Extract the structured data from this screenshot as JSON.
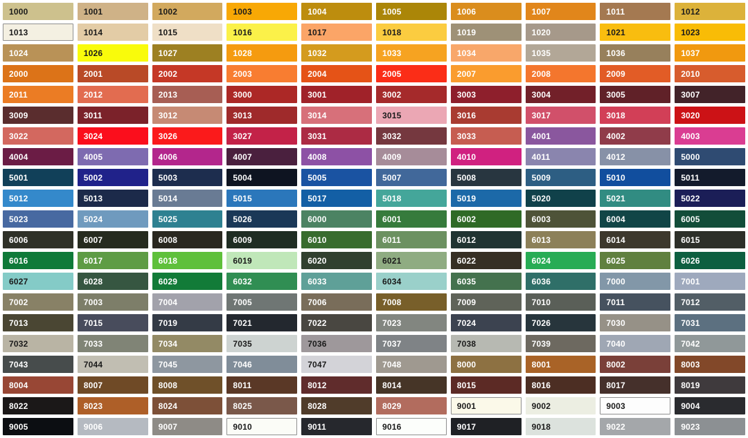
{
  "page": {
    "title": "RAL colour swatch grid",
    "background": "#ffffff"
  },
  "grid": {
    "columns": 10,
    "rows": 21,
    "gap_color": "#ffffff",
    "border_color": "#8f8f8f"
  },
  "text_colors": {
    "d": "#1b1b1b",
    "l": "#ffffff"
  },
  "bordered_codes": [
    "1013",
    "9001",
    "9003",
    "9010",
    "9016"
  ],
  "swatch_fields": [
    "code",
    "hex",
    "text_color"
  ],
  "swatches": [
    [
      "1000",
      "#CDC18D",
      "d"
    ],
    [
      "1001",
      "#CFB287",
      "d"
    ],
    [
      "1002",
      "#D2A95E",
      "d"
    ],
    [
      "1003",
      "#F8A805",
      "d"
    ],
    [
      "1004",
      "#BD8D0E",
      "l"
    ],
    [
      "1005",
      "#AB8608",
      "l"
    ],
    [
      "1006",
      "#DA8D1D",
      "l"
    ],
    [
      "1007",
      "#E1861B",
      "l"
    ],
    [
      "1011",
      "#A47951",
      "l"
    ],
    [
      "1012",
      "#DCB23A",
      "d"
    ],
    [
      "1013",
      "#F4F0E2",
      "d"
    ],
    [
      "1014",
      "#E3CCA6",
      "d"
    ],
    [
      "1015",
      "#EFDFC6",
      "d"
    ],
    [
      "1016",
      "#FBF149",
      "d"
    ],
    [
      "1017",
      "#FBA567",
      "d"
    ],
    [
      "1018",
      "#FBCC40",
      "d"
    ],
    [
      "1019",
      "#9E9177",
      "l"
    ],
    [
      "1020",
      "#A6998A",
      "l"
    ],
    [
      "1021",
      "#F9BD0F",
      "d"
    ],
    [
      "1023",
      "#F9BC06",
      "d"
    ],
    [
      "1024",
      "#B99257",
      "l"
    ],
    [
      "1026",
      "#F9FB0B",
      "d"
    ],
    [
      "1027",
      "#9D8022",
      "l"
    ],
    [
      "1028",
      "#F59B0F",
      "l"
    ],
    [
      "1032",
      "#D49B1E",
      "l"
    ],
    [
      "1033",
      "#F6A321",
      "l"
    ],
    [
      "1034",
      "#F8A76A",
      "l"
    ],
    [
      "1035",
      "#B2A797",
      "l"
    ],
    [
      "1036",
      "#97805C",
      "l"
    ],
    [
      "1037",
      "#F1990F",
      "l"
    ],
    [
      "2000",
      "#DC7318",
      "l"
    ],
    [
      "2001",
      "#B94A27",
      "l"
    ],
    [
      "2002",
      "#C53826",
      "l"
    ],
    [
      "2003",
      "#F87D31",
      "l"
    ],
    [
      "2004",
      "#E55317",
      "l"
    ],
    [
      "2005",
      "#FB2D17",
      "l"
    ],
    [
      "2007",
      "#FA9C2E",
      "l"
    ],
    [
      "2008",
      "#F4762D",
      "l"
    ],
    [
      "2009",
      "#E25C26",
      "l"
    ],
    [
      "2010",
      "#D75C2D",
      "l"
    ],
    [
      "2011",
      "#EB7C24",
      "l"
    ],
    [
      "2012",
      "#E26C50",
      "l"
    ],
    [
      "2013",
      "#A75E54",
      "l"
    ],
    [
      "3000",
      "#AC2826",
      "l"
    ],
    [
      "3001",
      "#A02229",
      "l"
    ],
    [
      "3002",
      "#A52A2B",
      "l"
    ],
    [
      "3003",
      "#8E1F2C",
      "l"
    ],
    [
      "3004",
      "#722029",
      "l"
    ],
    [
      "3005",
      "#602128",
      "l"
    ],
    [
      "3007",
      "#422329",
      "l"
    ],
    [
      "3009",
      "#5A2D2E",
      "l"
    ],
    [
      "3011",
      "#7B222A",
      "l"
    ],
    [
      "3012",
      "#C68A74",
      "l"
    ],
    [
      "3013",
      "#9F2A2B",
      "l"
    ],
    [
      "3014",
      "#D7707A",
      "l"
    ],
    [
      "3015",
      "#EBA7B4",
      "d"
    ],
    [
      "3016",
      "#A93B31",
      "l"
    ],
    [
      "3017",
      "#D1506A",
      "l"
    ],
    [
      "3018",
      "#D23F57",
      "l"
    ],
    [
      "3020",
      "#CC1216",
      "l"
    ],
    [
      "3022",
      "#D3685F",
      "l"
    ],
    [
      "3024",
      "#FB0E1C",
      "l"
    ],
    [
      "3026",
      "#FB1A1B",
      "l"
    ],
    [
      "3027",
      "#C32248",
      "l"
    ],
    [
      "3031",
      "#AC2B44",
      "l"
    ],
    [
      "3032",
      "#75383F",
      "l"
    ],
    [
      "3033",
      "#C65D51",
      "l"
    ],
    [
      "4001",
      "#8A579E",
      "l"
    ],
    [
      "4002",
      "#903C4A",
      "l"
    ],
    [
      "4003",
      "#DA3D92",
      "l"
    ],
    [
      "4004",
      "#6B1C45",
      "l"
    ],
    [
      "4005",
      "#7E6BB0",
      "l"
    ],
    [
      "4006",
      "#B3268C",
      "l"
    ],
    [
      "4007",
      "#4A203E",
      "l"
    ],
    [
      "4008",
      "#8D51A5",
      "l"
    ],
    [
      "4009",
      "#A68C99",
      "l"
    ],
    [
      "4010",
      "#D02180",
      "l"
    ],
    [
      "4011",
      "#8A85AE",
      "l"
    ],
    [
      "4012",
      "#8791A7",
      "l"
    ],
    [
      "5000",
      "#2F4B72",
      "l"
    ],
    [
      "5001",
      "#114059",
      "l"
    ],
    [
      "5002",
      "#20228A",
      "l"
    ],
    [
      "5003",
      "#1D2D4E",
      "l"
    ],
    [
      "5004",
      "#0E1421",
      "l"
    ],
    [
      "5005",
      "#1A53A2",
      "l"
    ],
    [
      "5007",
      "#41689A",
      "l"
    ],
    [
      "5008",
      "#283640",
      "l"
    ],
    [
      "5009",
      "#2D5E83",
      "l"
    ],
    [
      "5010",
      "#114E9E",
      "l"
    ],
    [
      "5011",
      "#131B2C",
      "l"
    ],
    [
      "5012",
      "#3489CB",
      "l"
    ],
    [
      "5013",
      "#1C2A4A",
      "l"
    ],
    [
      "5014",
      "#697B94",
      "l"
    ],
    [
      "5015",
      "#2B77BB",
      "l"
    ],
    [
      "5017",
      "#135FA5",
      "l"
    ],
    [
      "5018",
      "#44A69A",
      "l"
    ],
    [
      "5019",
      "#1C69A8",
      "l"
    ],
    [
      "5020",
      "#10414A",
      "l"
    ],
    [
      "5021",
      "#318C82",
      "l"
    ],
    [
      "5022",
      "#1B1E57",
      "l"
    ],
    [
      "5023",
      "#4769A1",
      "l"
    ],
    [
      "5024",
      "#6F9ABE",
      "l"
    ],
    [
      "5025",
      "#2E8191",
      "l"
    ],
    [
      "5026",
      "#1A3857",
      "l"
    ],
    [
      "6000",
      "#4C8363",
      "l"
    ],
    [
      "6001",
      "#367B3C",
      "l"
    ],
    [
      "6002",
      "#2F6A26",
      "l"
    ],
    [
      "6003",
      "#4E5338",
      "l"
    ],
    [
      "6004",
      "#114546",
      "l"
    ],
    [
      "6005",
      "#124D39",
      "l"
    ],
    [
      "6006",
      "#2F3128",
      "l"
    ],
    [
      "6007",
      "#262B1F",
      "l"
    ],
    [
      "6008",
      "#2A2820",
      "l"
    ],
    [
      "6009",
      "#1F2D23",
      "l"
    ],
    [
      "6010",
      "#386C2E",
      "l"
    ],
    [
      "6011",
      "#6C9161",
      "l"
    ],
    [
      "6012",
      "#203432",
      "l"
    ],
    [
      "6013",
      "#8C8059",
      "l"
    ],
    [
      "6014",
      "#3D382D",
      "l"
    ],
    [
      "6015",
      "#2D2F29",
      "l"
    ],
    [
      "6016",
      "#0F7A39",
      "l"
    ],
    [
      "6017",
      "#5E9C45",
      "l"
    ],
    [
      "6018",
      "#5FC03B",
      "l"
    ],
    [
      "6019",
      "#C0E7B9",
      "d"
    ],
    [
      "6020",
      "#31402F",
      "l"
    ],
    [
      "6021",
      "#8FAC82",
      "d"
    ],
    [
      "6022",
      "#362F24",
      "l"
    ],
    [
      "6024",
      "#28AC55",
      "l"
    ],
    [
      "6025",
      "#60803F",
      "l"
    ],
    [
      "6026",
      "#0D5F40",
      "l"
    ],
    [
      "6027",
      "#84CBC7",
      "d"
    ],
    [
      "6028",
      "#365641",
      "l"
    ],
    [
      "6029",
      "#127B38",
      "l"
    ],
    [
      "6032",
      "#308E53",
      "l"
    ],
    [
      "6033",
      "#5FA098",
      "l"
    ],
    [
      "6034",
      "#9AD0CA",
      "d"
    ],
    [
      "6035",
      "#44724E",
      "l"
    ],
    [
      "6036",
      "#2F6F68",
      "l"
    ],
    [
      "7000",
      "#8297A8",
      "l"
    ],
    [
      "7001",
      "#9EA9BD",
      "l"
    ],
    [
      "7002",
      "#888166",
      "l"
    ],
    [
      "7003",
      "#7D7E69",
      "l"
    ],
    [
      "7004",
      "#A2A2AB",
      "l"
    ],
    [
      "7005",
      "#6F7674",
      "l"
    ],
    [
      "7006",
      "#796D5A",
      "l"
    ],
    [
      "7008",
      "#785F2A",
      "l"
    ],
    [
      "7009",
      "#5F6359",
      "l"
    ],
    [
      "7010",
      "#5A5F58",
      "l"
    ],
    [
      "7011",
      "#46525F",
      "l"
    ],
    [
      "7012",
      "#525E66",
      "l"
    ],
    [
      "7013",
      "#4A4633",
      "l"
    ],
    [
      "7015",
      "#484C5C",
      "l"
    ],
    [
      "7019",
      "#343B46",
      "l"
    ],
    [
      "7021",
      "#23282F",
      "l"
    ],
    [
      "7022",
      "#494741",
      "l"
    ],
    [
      "7023",
      "#828680",
      "l"
    ],
    [
      "7024",
      "#3C4350",
      "l"
    ],
    [
      "7026",
      "#27353C",
      "l"
    ],
    [
      "7030",
      "#969187",
      "l"
    ],
    [
      "7031",
      "#5C7080",
      "l"
    ],
    [
      "7032",
      "#B9B4A4",
      "d"
    ],
    [
      "7033",
      "#808476",
      "l"
    ],
    [
      "7034",
      "#938A65",
      "l"
    ],
    [
      "7035",
      "#CDD3D1",
      "d"
    ],
    [
      "7036",
      "#9E989B",
      "d"
    ],
    [
      "7037",
      "#7F8386",
      "l"
    ],
    [
      "7038",
      "#B7B9B2",
      "d"
    ],
    [
      "7039",
      "#6D6960",
      "l"
    ],
    [
      "7040",
      "#9FA7B4",
      "l"
    ],
    [
      "7042",
      "#909899",
      "l"
    ],
    [
      "7043",
      "#474C4C",
      "l"
    ],
    [
      "7044",
      "#C1BEB2",
      "d"
    ],
    [
      "7045",
      "#8E97A0",
      "l"
    ],
    [
      "7046",
      "#808D99",
      "l"
    ],
    [
      "7047",
      "#D3D3D8",
      "d"
    ],
    [
      "7048",
      "#9F9990",
      "l"
    ],
    [
      "8000",
      "#8D7142",
      "l"
    ],
    [
      "8001",
      "#A96327",
      "l"
    ],
    [
      "8002",
      "#7A4039",
      "l"
    ],
    [
      "8003",
      "#824829",
      "l"
    ],
    [
      "8004",
      "#984735",
      "l"
    ],
    [
      "8007",
      "#6F4A26",
      "l"
    ],
    [
      "8008",
      "#6F5029",
      "l"
    ],
    [
      "8011",
      "#5A3826",
      "l"
    ],
    [
      "8012",
      "#602C2C",
      "l"
    ],
    [
      "8014",
      "#463527",
      "l"
    ],
    [
      "8015",
      "#5C2A25",
      "l"
    ],
    [
      "8016",
      "#4C2E23",
      "l"
    ],
    [
      "8017",
      "#45302B",
      "l"
    ],
    [
      "8019",
      "#3F3A3D",
      "l"
    ],
    [
      "8022",
      "#1B1818",
      "l"
    ],
    [
      "8023",
      "#AE5F28",
      "l"
    ],
    [
      "8024",
      "#7D5038",
      "l"
    ],
    [
      "8025",
      "#7A584A",
      "l"
    ],
    [
      "8028",
      "#503C2A",
      "l"
    ],
    [
      "8029",
      "#B26C5E",
      "l"
    ],
    [
      "9001",
      "#FBF9E9",
      "d"
    ],
    [
      "9002",
      "#ECEEE2",
      "d"
    ],
    [
      "9003",
      "#FDFDFD",
      "d"
    ],
    [
      "9004",
      "#2A2B2F",
      "l"
    ],
    [
      "9005",
      "#0C0E12",
      "l"
    ],
    [
      "9006",
      "#B5BAC1",
      "l"
    ],
    [
      "9007",
      "#8E8B86",
      "l"
    ],
    [
      "9010",
      "#FBFCF7",
      "d"
    ],
    [
      "9011",
      "#26282D",
      "l"
    ],
    [
      "9016",
      "#FCFEFB",
      "d"
    ],
    [
      "9017",
      "#1F2125",
      "l"
    ],
    [
      "9018",
      "#DCE2DD",
      "d"
    ],
    [
      "9022",
      "#A4A7AA",
      "l"
    ],
    [
      "9023",
      "#8C9093",
      "l"
    ]
  ]
}
